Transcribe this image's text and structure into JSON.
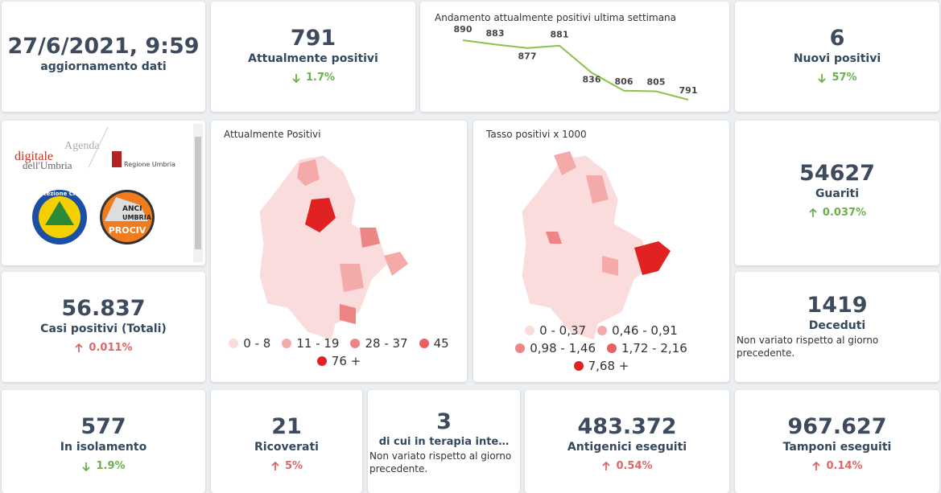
{
  "update": {
    "value": "27/6/2021, 9:59",
    "label": "aggiornamento dati"
  },
  "current": {
    "value": "791",
    "label": "Attualmente positivi",
    "change": "1.7%"
  },
  "trend": {
    "type": "line",
    "title": "Andamento attualmente positivi ultima settimana",
    "values": [
      890,
      883,
      877,
      881,
      836,
      806,
      805,
      791
    ],
    "color": "#8bc34a"
  },
  "new": {
    "value": "6",
    "label": "Nuovi positivi",
    "change": "57%"
  },
  "logos": {
    "agenda": [
      "Agenda",
      "digitale",
      "dell'Umbria"
    ],
    "region": "Regione Umbria",
    "civil": "Protezione Civile",
    "anci": [
      "ANCI",
      "UMBRIA",
      "PROCIV"
    ]
  },
  "map_current": {
    "title": "Attualmente Positivi",
    "legend": [
      {
        "label": "0 - 8",
        "color": "#fbdcdc"
      },
      {
        "label": "11 - 19",
        "color": "#f5aaaa"
      },
      {
        "label": "28 - 37",
        "color": "#ee8585"
      },
      {
        "label": "45",
        "color": "#e86060"
      },
      {
        "label": "76 +",
        "color": "#e02222"
      }
    ]
  },
  "map_rate": {
    "title": "Tasso positivi x 1000",
    "legend": [
      {
        "label": "0 - 0,37",
        "color": "#fbdcdc"
      },
      {
        "label": "0,46 - 0,91",
        "color": "#f5aaaa"
      },
      {
        "label": "0,98 - 1,46",
        "color": "#ee8585"
      },
      {
        "label": "1,72 - 2,16",
        "color": "#e86060"
      },
      {
        "label": "7,68 +",
        "color": "#e02222"
      }
    ]
  },
  "recovered": {
    "value": "54627",
    "label": "Guariti",
    "change": "0.037%"
  },
  "total": {
    "value": "56.837",
    "label": "Casi positivi (Totali)",
    "change": "0.011%"
  },
  "deaths": {
    "value": "1419",
    "label": "Deceduti",
    "note": "Non variato rispetto al giorno precedente."
  },
  "isolation": {
    "value": "577",
    "label": "In isolamento",
    "change": "1.9%"
  },
  "hospital": {
    "value": "21",
    "label": "Ricoverati",
    "change": "5%"
  },
  "icu": {
    "value": "3",
    "label": "di cui in terapia inte…",
    "note": "Non variato rispetto al giorno precedente."
  },
  "antigen": {
    "value": "483.372",
    "label": "Antigenici eseguiti",
    "change": "0.54%"
  },
  "swabs": {
    "value": "967.627",
    "label": "Tamponi eseguiti",
    "change": "0.14%"
  }
}
